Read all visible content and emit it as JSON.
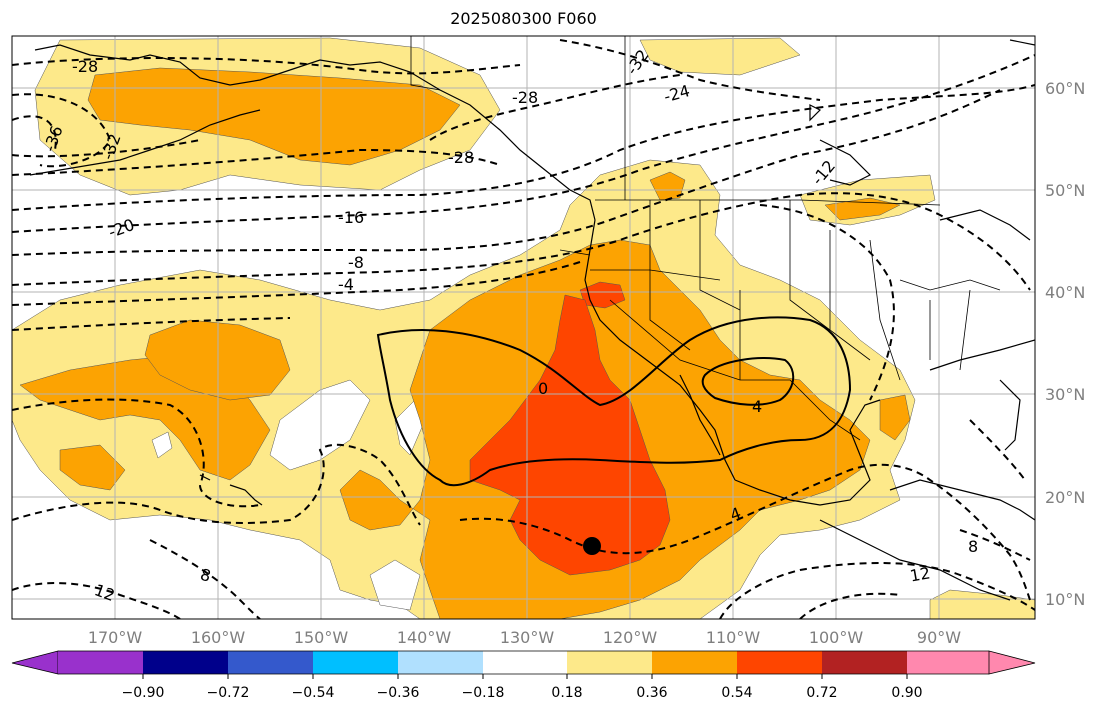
{
  "title": "2025080300 F060",
  "map": {
    "projection": "lat-lon",
    "lon_range": [
      -180,
      -81
    ],
    "lat_range": [
      8,
      65
    ],
    "gridlines": true,
    "lat_labels": [
      "60°N",
      "50°N",
      "40°N",
      "30°N",
      "20°N",
      "10°N"
    ],
    "lon_labels": [
      "170°W",
      "160°W",
      "150°W",
      "140°W",
      "130°W",
      "120°W",
      "110°W",
      "100°W",
      "90°W"
    ],
    "shading_colors": {
      "level_0_18": "#fde98a",
      "level_0_36": "#fca302",
      "level_0_54": "#fe4500",
      "land_water_background": "#ffffff"
    },
    "contour_labels": [
      {
        "text": "-28"
      },
      {
        "text": "-36"
      },
      {
        "text": "-32"
      },
      {
        "text": "-28"
      },
      {
        "text": "-28"
      },
      {
        "text": "-32"
      },
      {
        "text": "-24"
      },
      {
        "text": "-12"
      },
      {
        "text": "-20"
      },
      {
        "text": "-16"
      },
      {
        "text": "-8"
      },
      {
        "text": "-4"
      },
      {
        "text": "0"
      },
      {
        "text": "4"
      },
      {
        "text": "4"
      },
      {
        "text": "8"
      },
      {
        "text": "12"
      },
      {
        "text": "8"
      },
      {
        "text": "12"
      }
    ],
    "marker": {
      "name": "storm-center-dot",
      "lon": -123.2,
      "lat": 15.1
    }
  },
  "colorbar": {
    "ticks": [
      "−0.90",
      "−0.72",
      "−0.54",
      "−0.36",
      "−0.18",
      "0.18",
      "0.36",
      "0.54",
      "0.72",
      "0.90"
    ],
    "colors": [
      "#9931cc",
      "#00008b",
      "#3459cc",
      "#00bfff",
      "#b0e0fe",
      "#ffffff",
      "#fde98a",
      "#fca302",
      "#fe4500",
      "#b22222",
      "#ff88ae"
    ]
  }
}
